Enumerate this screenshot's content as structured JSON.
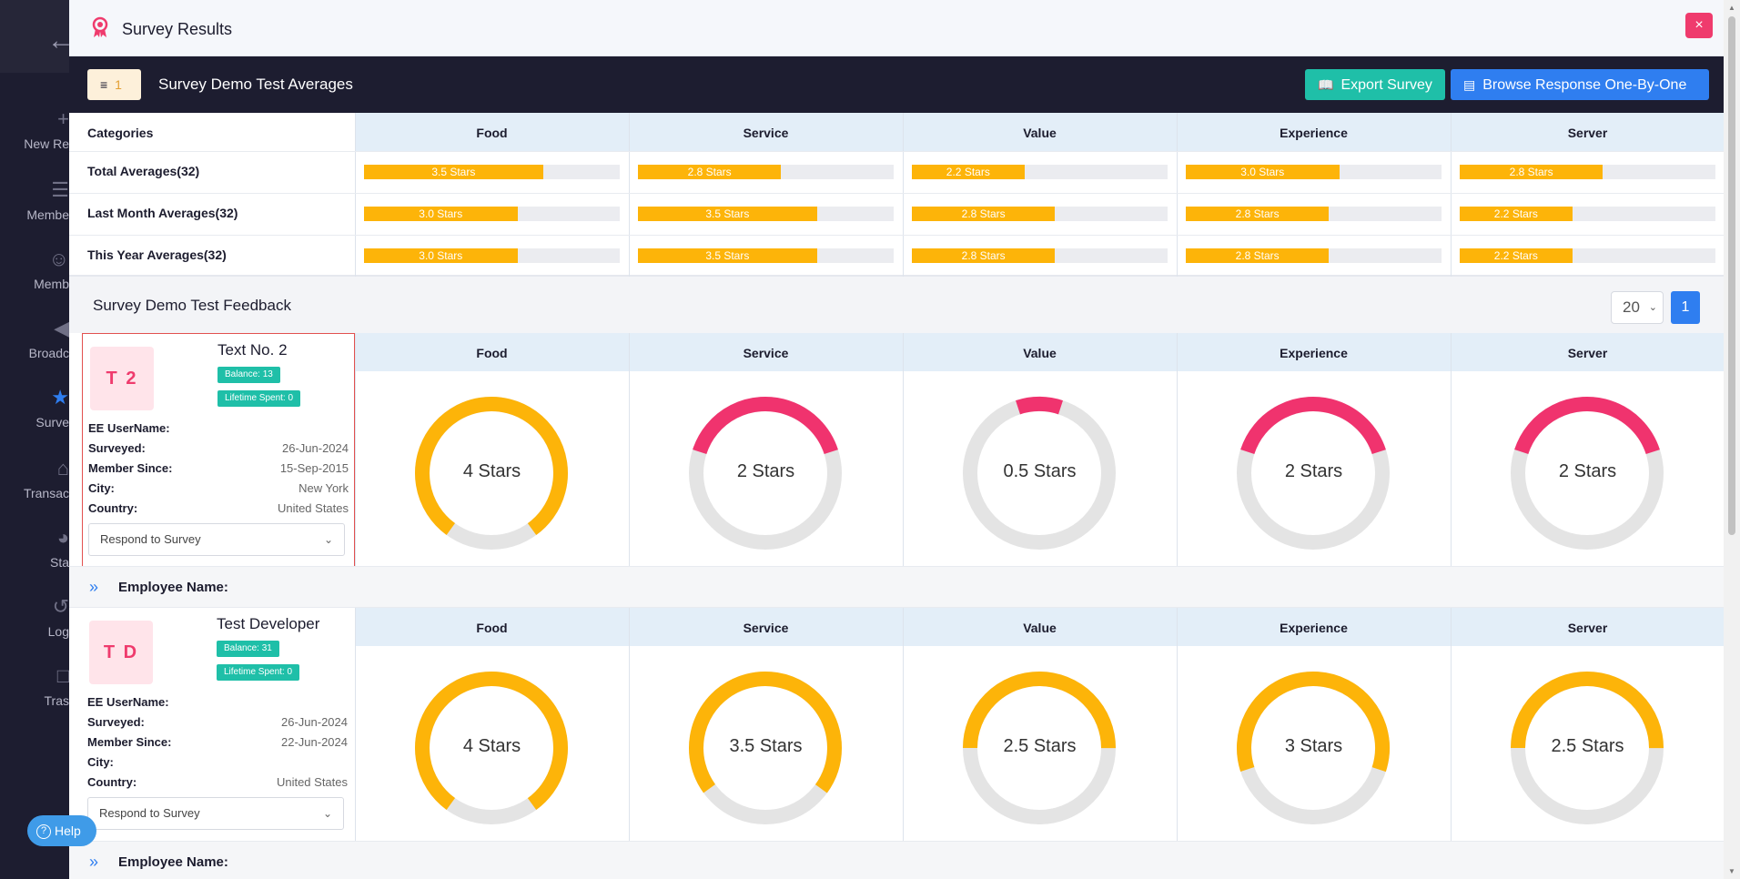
{
  "sidebar": {
    "items": [
      {
        "label": "New Re",
        "icon": "plus-icon"
      },
      {
        "label": "Membe",
        "icon": "list-icon"
      },
      {
        "label": "Memb",
        "icon": "users-icon"
      },
      {
        "label": "Broadc",
        "icon": "megaphone-icon"
      },
      {
        "label": "Surve",
        "icon": "star-icon"
      },
      {
        "label": "Transac",
        "icon": "cart-icon"
      },
      {
        "label": "Sta",
        "icon": "pie-chart-icon"
      },
      {
        "label": "Log",
        "icon": "history-icon"
      },
      {
        "label": "Tras",
        "icon": "trash-icon"
      }
    ],
    "help_label": "Help"
  },
  "modal": {
    "title": "Survey Results",
    "close_label": "×"
  },
  "toolbar": {
    "filter_count": "1",
    "title": "Survey Demo Test Averages",
    "export_label": "Export Survey",
    "browse_label": "Browse Response One-By-One"
  },
  "averages": {
    "categories_label": "Categories",
    "columns": [
      "Food",
      "Service",
      "Value",
      "Experience",
      "Server"
    ],
    "rows": [
      {
        "label": "Total Averages(32)",
        "values": [
          {
            "text": "3.5 Stars",
            "stars": 3.5
          },
          {
            "text": "2.8 Stars",
            "stars": 2.8
          },
          {
            "text": "2.2 Stars",
            "stars": 2.2
          },
          {
            "text": "3.0 Stars",
            "stars": 3.0
          },
          {
            "text": "2.8 Stars",
            "stars": 2.8
          }
        ]
      },
      {
        "label": "Last Month Averages(32)",
        "values": [
          {
            "text": "3.0 Stars",
            "stars": 3.0
          },
          {
            "text": "3.5 Stars",
            "stars": 3.5
          },
          {
            "text": "2.8 Stars",
            "stars": 2.8
          },
          {
            "text": "2.8 Stars",
            "stars": 2.8
          },
          {
            "text": "2.2 Stars",
            "stars": 2.2
          }
        ]
      },
      {
        "label": "This Year Averages(32)",
        "values": [
          {
            "text": "3.0 Stars",
            "stars": 3.0
          },
          {
            "text": "3.5 Stars",
            "stars": 3.5
          },
          {
            "text": "2.8 Stars",
            "stars": 2.8
          },
          {
            "text": "2.8 Stars",
            "stars": 2.8
          },
          {
            "text": "2.2 Stars",
            "stars": 2.2
          }
        ]
      }
    ],
    "max_stars": 5
  },
  "feedback": {
    "title": "Survey Demo Test Feedback",
    "page_size": "20",
    "current_page": "1"
  },
  "colors": {
    "high": "#fdb409",
    "low": "#f0336e",
    "track": "#e4e4e4"
  },
  "responses": [
    {
      "initials": "T 2",
      "name": "Text No. 2",
      "balance": "Balance: 13",
      "lifetime": "Lifetime Spent: 0",
      "fields": [
        {
          "k": "EE UserName:",
          "v": ""
        },
        {
          "k": "Surveyed:",
          "v": "26-Jun-2024"
        },
        {
          "k": "Member Since:",
          "v": "15-Sep-2015"
        },
        {
          "k": "City:",
          "v": "New York"
        },
        {
          "k": "Country:",
          "v": "United States"
        }
      ],
      "respond_label": "Respond to Survey",
      "employee_label": "Employee Name:",
      "ratings": [
        {
          "text": "4 Stars",
          "stars": 4
        },
        {
          "text": "2 Stars",
          "stars": 2
        },
        {
          "text": "0.5 Stars",
          "stars": 0.5
        },
        {
          "text": "2 Stars",
          "stars": 2
        },
        {
          "text": "2 Stars",
          "stars": 2
        }
      ]
    },
    {
      "initials": "T D",
      "name": "Test Developer",
      "balance": "Balance: 31",
      "lifetime": "Lifetime Spent: 0",
      "fields": [
        {
          "k": "EE UserName:",
          "v": ""
        },
        {
          "k": "Surveyed:",
          "v": "26-Jun-2024"
        },
        {
          "k": "Member Since:",
          "v": "22-Jun-2024"
        },
        {
          "k": "City:",
          "v": ""
        },
        {
          "k": "Country:",
          "v": "United States"
        }
      ],
      "respond_label": "Respond to Survey",
      "employee_label": "Employee Name:",
      "ratings": [
        {
          "text": "4 Stars",
          "stars": 4
        },
        {
          "text": "3.5 Stars",
          "stars": 3.5
        },
        {
          "text": "2.5 Stars",
          "stars": 2.5
        },
        {
          "text": "3 Stars",
          "stars": 3
        },
        {
          "text": "2.5 Stars",
          "stars": 2.5
        }
      ]
    }
  ]
}
